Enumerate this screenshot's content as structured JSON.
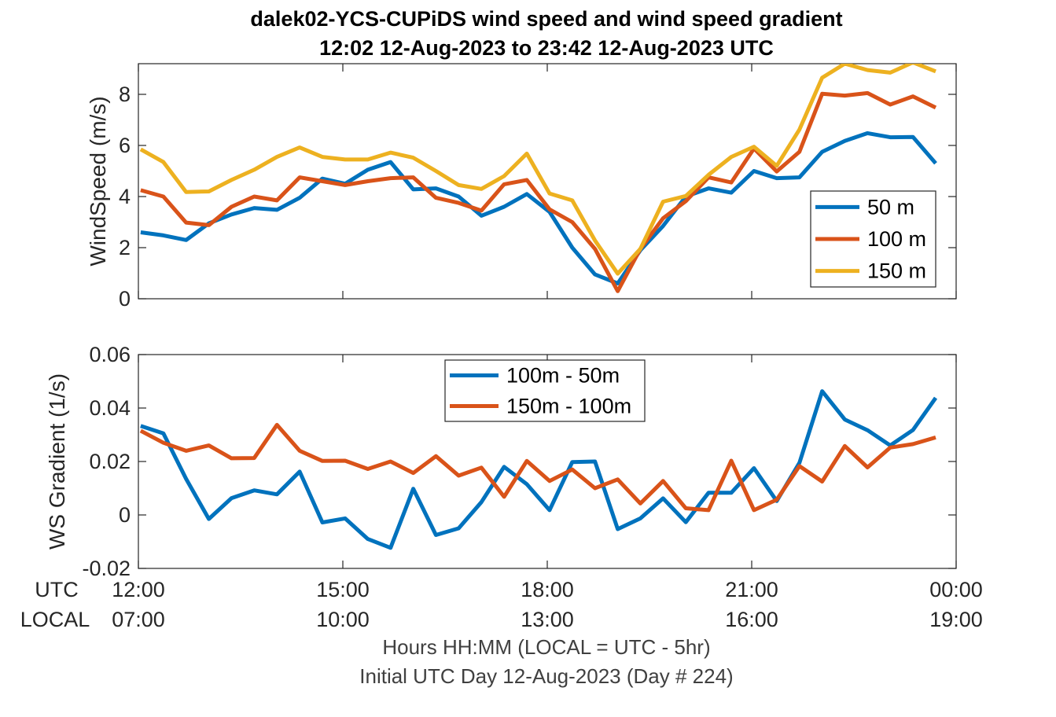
{
  "header": {
    "title_line1": "dalek02-YCS-CUPiDS  wind speed and wind speed gradient",
    "title_line2": "12:02 12-Aug-2023 to 23:42 12-Aug-2023  UTC"
  },
  "footer": {
    "line1": "Hours HH:MM  (LOCAL = UTC - 5hr)",
    "line2": "Initial UTC Day 12-Aug-2023 (Day # 224)"
  },
  "time_axis": {
    "row_labels": [
      "UTC",
      "LOCAL"
    ],
    "utc_ticks": [
      "12:00",
      "15:00",
      "18:00",
      "21:00",
      "00:00"
    ],
    "local_ticks": [
      "07:00",
      "10:00",
      "13:00",
      "16:00",
      "19:00"
    ],
    "tick_hours": [
      12,
      15,
      18,
      21,
      24
    ],
    "xlim_hours": [
      12,
      24
    ]
  },
  "colors": {
    "blue": "#0072BD",
    "orange": "#D95319",
    "yellow": "#EDB120"
  },
  "chart_data": [
    {
      "type": "line",
      "title": "",
      "ylabel": "WindSpeed (m/s)",
      "xlabel": "",
      "ylim": [
        0,
        9.2
      ],
      "yticks": [
        0,
        2,
        4,
        6,
        8
      ],
      "ytick_labels": [
        "0",
        "2",
        "4",
        "6",
        "8"
      ],
      "grid": false,
      "legend_position": "lower-right",
      "x": [
        12.0333,
        12.3667,
        12.7,
        13.0333,
        13.3667,
        13.7,
        14.0333,
        14.3667,
        14.7,
        15.0333,
        15.3667,
        15.7,
        16.0333,
        16.3667,
        16.7,
        17.0333,
        17.3667,
        17.7,
        18.0333,
        18.3667,
        18.7,
        19.0333,
        19.3667,
        19.7,
        20.0333,
        20.3667,
        20.7,
        21.0333,
        21.3667,
        21.7,
        22.0333,
        22.3667,
        22.7,
        23.0333,
        23.3667,
        23.7
      ],
      "series": [
        {
          "name": "50 m",
          "color": "#0072BD",
          "values": [
            2.6,
            2.48,
            2.3,
            2.95,
            3.3,
            3.55,
            3.48,
            3.95,
            4.7,
            4.5,
            5.05,
            5.35,
            4.28,
            4.32,
            4.0,
            3.25,
            3.6,
            4.1,
            3.4,
            2.0,
            0.95,
            0.6,
            1.9,
            2.85,
            4.0,
            4.32,
            4.15,
            5.0,
            4.72,
            4.75,
            5.75,
            6.18,
            6.48,
            6.32,
            6.33,
            5.3
          ]
        },
        {
          "name": "100 m",
          "color": "#D95319",
          "values": [
            4.25,
            4.0,
            2.98,
            2.88,
            3.6,
            4.0,
            3.85,
            4.75,
            4.6,
            4.45,
            4.6,
            4.72,
            4.75,
            3.95,
            3.75,
            3.45,
            4.48,
            4.65,
            3.5,
            3.0,
            1.95,
            0.3,
            1.95,
            3.15,
            3.82,
            4.75,
            4.55,
            5.88,
            4.98,
            5.75,
            8.02,
            7.95,
            8.05,
            7.6,
            7.92,
            7.48
          ]
        },
        {
          "name": "150 m",
          "color": "#EDB120",
          "values": [
            5.85,
            5.35,
            4.18,
            4.2,
            4.65,
            5.05,
            5.55,
            5.92,
            5.55,
            5.45,
            5.45,
            5.72,
            5.52,
            5.0,
            4.45,
            4.3,
            4.8,
            5.68,
            4.12,
            3.85,
            2.28,
            0.98,
            1.95,
            3.8,
            4.02,
            4.85,
            5.55,
            5.95,
            5.2,
            6.62,
            8.65,
            9.2,
            8.95,
            8.85,
            9.25,
            8.9
          ]
        }
      ]
    },
    {
      "type": "line",
      "title": "",
      "ylabel": "WS Gradient (1/s)",
      "xlabel": "",
      "ylim": [
        -0.02,
        0.06
      ],
      "yticks": [
        -0.02,
        0,
        0.02,
        0.04,
        0.06
      ],
      "ytick_labels": [
        "-0.02",
        "0",
        "0.02",
        "0.04",
        "0.06"
      ],
      "grid": false,
      "legend_position": "top-center",
      "x": [
        12.0333,
        12.3667,
        12.7,
        13.0333,
        13.3667,
        13.7,
        14.0333,
        14.3667,
        14.7,
        15.0333,
        15.3667,
        15.7,
        16.0333,
        16.3667,
        16.7,
        17.0333,
        17.3667,
        17.7,
        18.0333,
        18.3667,
        18.7,
        19.0333,
        19.3667,
        19.7,
        20.0333,
        20.3667,
        20.7,
        21.0333,
        21.3667,
        21.7,
        22.0333,
        22.3667,
        22.7,
        23.0333,
        23.3667,
        23.7
      ],
      "series": [
        {
          "name": "100m - 50m",
          "color": "#0072BD",
          "values": [
            0.0333,
            0.0305,
            0.0135,
            -0.0015,
            0.0063,
            0.0092,
            0.0077,
            0.0162,
            -0.0028,
            -0.0013,
            -0.009,
            -0.0123,
            0.0098,
            -0.0075,
            -0.005,
            0.0048,
            0.018,
            0.0115,
            0.0018,
            0.0198,
            0.02,
            -0.0053,
            -0.0013,
            0.0062,
            -0.0027,
            0.0083,
            0.0083,
            0.0175,
            0.0052,
            0.0195,
            0.0463,
            0.0357,
            0.0317,
            0.026,
            0.0318,
            0.0438
          ]
        },
        {
          "name": "150m - 100m",
          "color": "#D95319",
          "values": [
            0.0315,
            0.027,
            0.024,
            0.026,
            0.0212,
            0.0213,
            0.0337,
            0.024,
            0.0202,
            0.0203,
            0.0172,
            0.02,
            0.0157,
            0.022,
            0.0147,
            0.0177,
            0.0068,
            0.0202,
            0.0127,
            0.017,
            0.01,
            0.0133,
            0.0043,
            0.0127,
            0.0025,
            0.0018,
            0.0203,
            0.0018,
            0.0057,
            0.0183,
            0.0125,
            0.0258,
            0.0178,
            0.0252,
            0.0265,
            0.029
          ]
        }
      ]
    }
  ]
}
